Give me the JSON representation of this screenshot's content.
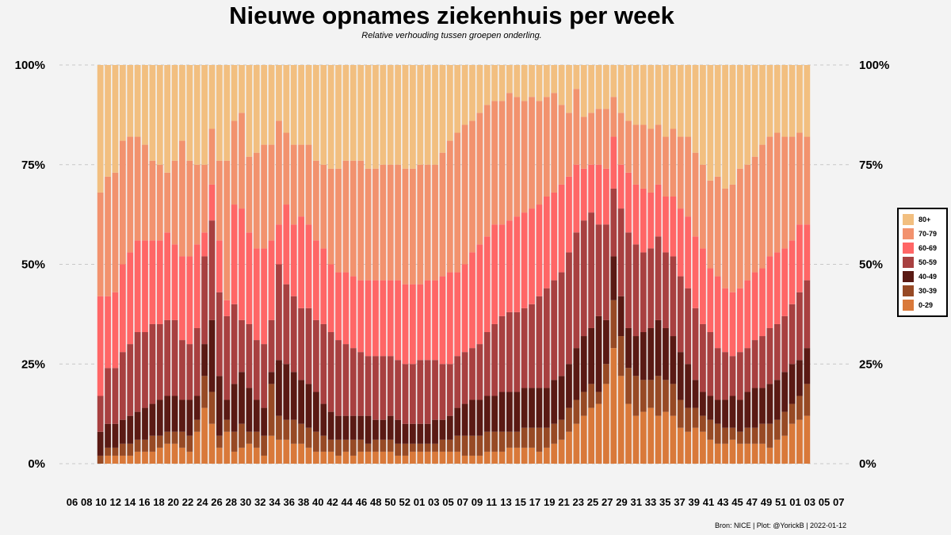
{
  "header": {
    "title": "Nieuwe opnames ziekenhuis per week",
    "subtitle": "Relative verhouding tussen groepen onderling."
  },
  "caption": "Bron: NICE | Plot: @YorickB |  2022-01-12",
  "chart_data": {
    "type": "bar",
    "stacked": true,
    "normalized": true,
    "title": "Nieuwe opnames ziekenhuis per week",
    "subtitle": "Relative verhouding tussen groepen onderling.",
    "y_ticks": [
      "0%",
      "25%",
      "50%",
      "75%",
      "100%"
    ],
    "ylim": [
      0,
      100
    ],
    "x_tick_labels": [
      "06",
      "08",
      "10",
      "12",
      "14",
      "16",
      "18",
      "20",
      "22",
      "24",
      "26",
      "28",
      "30",
      "32",
      "34",
      "36",
      "38",
      "40",
      "42",
      "44",
      "46",
      "48",
      "50",
      "52",
      "01",
      "03",
      "05",
      "07",
      "09",
      "11",
      "13",
      "15",
      "17",
      "19",
      "21",
      "23",
      "25",
      "27",
      "29",
      "31",
      "33",
      "35",
      "37",
      "39",
      "41",
      "43",
      "45",
      "47",
      "49",
      "51",
      "01",
      "03",
      "05",
      "07"
    ],
    "legend": {
      "position": "right",
      "items": [
        {
          "label": "80+",
          "color": "#f2bf80"
        },
        {
          "label": "70-79",
          "color": "#f2926e"
        },
        {
          "label": "60-69",
          "color": "#ff6666"
        },
        {
          "label": "50-59",
          "color": "#a84040"
        },
        {
          "label": "40-49",
          "color": "#5a1a14"
        },
        {
          "label": "30-39",
          "color": "#974a25"
        },
        {
          "label": "0-29",
          "color": "#d9793a"
        }
      ]
    },
    "series_order_bottom_to_top": [
      "0-29",
      "30-39",
      "40-49",
      "50-59",
      "60-69",
      "70-79",
      "80+"
    ],
    "cumulative_bounds_percent": {
      "c0": [
        0,
        2,
        2,
        2,
        2,
        3,
        3,
        3,
        4,
        5,
        5,
        4,
        3,
        8,
        14,
        10,
        4,
        8,
        3,
        4,
        5,
        4,
        2,
        7,
        6,
        6,
        5,
        5,
        4,
        3,
        3,
        3,
        2,
        3,
        2,
        3,
        3,
        3,
        3,
        3,
        2,
        2,
        3,
        3,
        3,
        3,
        3,
        3,
        3,
        2,
        2,
        2,
        3,
        3,
        3,
        4,
        4,
        4,
        4,
        3,
        4,
        5,
        6,
        8,
        10,
        12,
        14,
        15,
        20,
        29,
        22,
        15,
        12,
        13,
        14,
        12,
        13,
        12,
        9,
        8,
        9,
        8,
        6,
        5,
        5,
        6,
        5,
        5,
        5,
        5,
        4,
        6,
        7,
        10,
        11,
        12
      ],
      "c1": [
        2,
        4,
        4,
        5,
        5,
        6,
        6,
        7,
        7,
        8,
        8,
        8,
        7,
        11,
        22,
        18,
        7,
        11,
        8,
        10,
        8,
        8,
        7,
        20,
        12,
        11,
        11,
        10,
        9,
        8,
        7,
        6,
        6,
        6,
        6,
        6,
        5,
        6,
        6,
        6,
        5,
        5,
        5,
        5,
        5,
        5,
        6,
        6,
        7,
        7,
        7,
        7,
        8,
        8,
        8,
        8,
        8,
        9,
        9,
        9,
        9,
        10,
        11,
        14,
        16,
        18,
        20,
        18,
        25,
        41,
        32,
        24,
        22,
        21,
        21,
        22,
        21,
        20,
        16,
        14,
        14,
        12,
        11,
        10,
        9,
        9,
        8,
        9,
        9,
        10,
        10,
        11,
        13,
        15,
        17,
        20
      ],
      "c2": [
        8,
        10,
        10,
        11,
        12,
        13,
        14,
        15,
        16,
        17,
        17,
        16,
        16,
        17,
        30,
        36,
        22,
        16,
        20,
        23,
        19,
        16,
        14,
        23,
        26,
        25,
        23,
        21,
        20,
        18,
        15,
        13,
        12,
        12,
        12,
        12,
        12,
        11,
        11,
        12,
        11,
        10,
        10,
        10,
        10,
        11,
        11,
        12,
        14,
        15,
        16,
        16,
        17,
        17,
        18,
        18,
        18,
        19,
        19,
        19,
        19,
        21,
        22,
        25,
        29,
        32,
        34,
        37,
        36,
        52,
        42,
        34,
        32,
        33,
        34,
        36,
        34,
        32,
        28,
        25,
        21,
        18,
        17,
        16,
        16,
        17,
        16,
        18,
        19,
        19,
        20,
        21,
        23,
        25,
        26,
        29
      ],
      "c3": [
        17,
        24,
        24,
        28,
        30,
        33,
        33,
        35,
        35,
        36,
        36,
        31,
        30,
        34,
        52,
        61,
        43,
        37,
        40,
        36,
        35,
        31,
        30,
        36,
        50,
        45,
        42,
        39,
        39,
        36,
        35,
        33,
        31,
        30,
        29,
        28,
        27,
        27,
        27,
        27,
        26,
        25,
        25,
        26,
        26,
        26,
        25,
        25,
        27,
        28,
        29,
        30,
        33,
        35,
        37,
        38,
        38,
        39,
        40,
        42,
        44,
        46,
        48,
        53,
        58,
        61,
        63,
        60,
        60,
        69,
        64,
        58,
        55,
        53,
        54,
        57,
        53,
        52,
        47,
        44,
        39,
        35,
        33,
        29,
        28,
        27,
        28,
        29,
        31,
        32,
        34,
        35,
        37,
        40,
        43,
        46
      ],
      "c4": [
        42,
        42,
        43,
        50,
        53,
        56,
        56,
        56,
        56,
        58,
        55,
        52,
        52,
        55,
        58,
        70,
        56,
        41,
        65,
        64,
        58,
        54,
        54,
        56,
        60,
        65,
        60,
        62,
        60,
        56,
        54,
        50,
        48,
        48,
        47,
        46,
        46,
        46,
        46,
        46,
        46,
        45,
        45,
        45,
        46,
        46,
        47,
        48,
        48,
        50,
        53,
        55,
        57,
        60,
        60,
        61,
        62,
        63,
        64,
        65,
        67,
        68,
        70,
        72,
        75,
        74,
        75,
        75,
        74,
        82,
        75,
        73,
        70,
        69,
        68,
        70,
        67,
        67,
        64,
        62,
        57,
        54,
        49,
        47,
        44,
        43,
        44,
        46,
        48,
        49,
        52,
        53,
        54,
        56,
        60,
        60
      ],
      "c5": [
        68,
        72,
        73,
        81,
        82,
        82,
        80,
        76,
        75,
        73,
        76,
        81,
        76,
        75,
        75,
        84,
        76,
        76,
        86,
        88,
        77,
        78,
        80,
        80,
        86,
        83,
        80,
        80,
        80,
        76,
        75,
        74,
        74,
        76,
        76,
        76,
        74,
        74,
        75,
        75,
        75,
        74,
        74,
        75,
        75,
        75,
        78,
        81,
        83,
        85,
        86,
        88,
        90,
        91,
        91,
        93,
        92,
        91,
        92,
        91,
        92,
        93,
        90,
        88,
        94,
        87,
        88,
        89,
        89,
        92,
        88,
        86,
        85,
        85,
        84,
        85,
        82,
        84,
        82,
        82,
        78,
        75,
        71,
        72,
        69,
        70,
        74,
        75,
        77,
        80,
        82,
        83,
        82,
        82,
        83,
        82
      ]
    }
  }
}
